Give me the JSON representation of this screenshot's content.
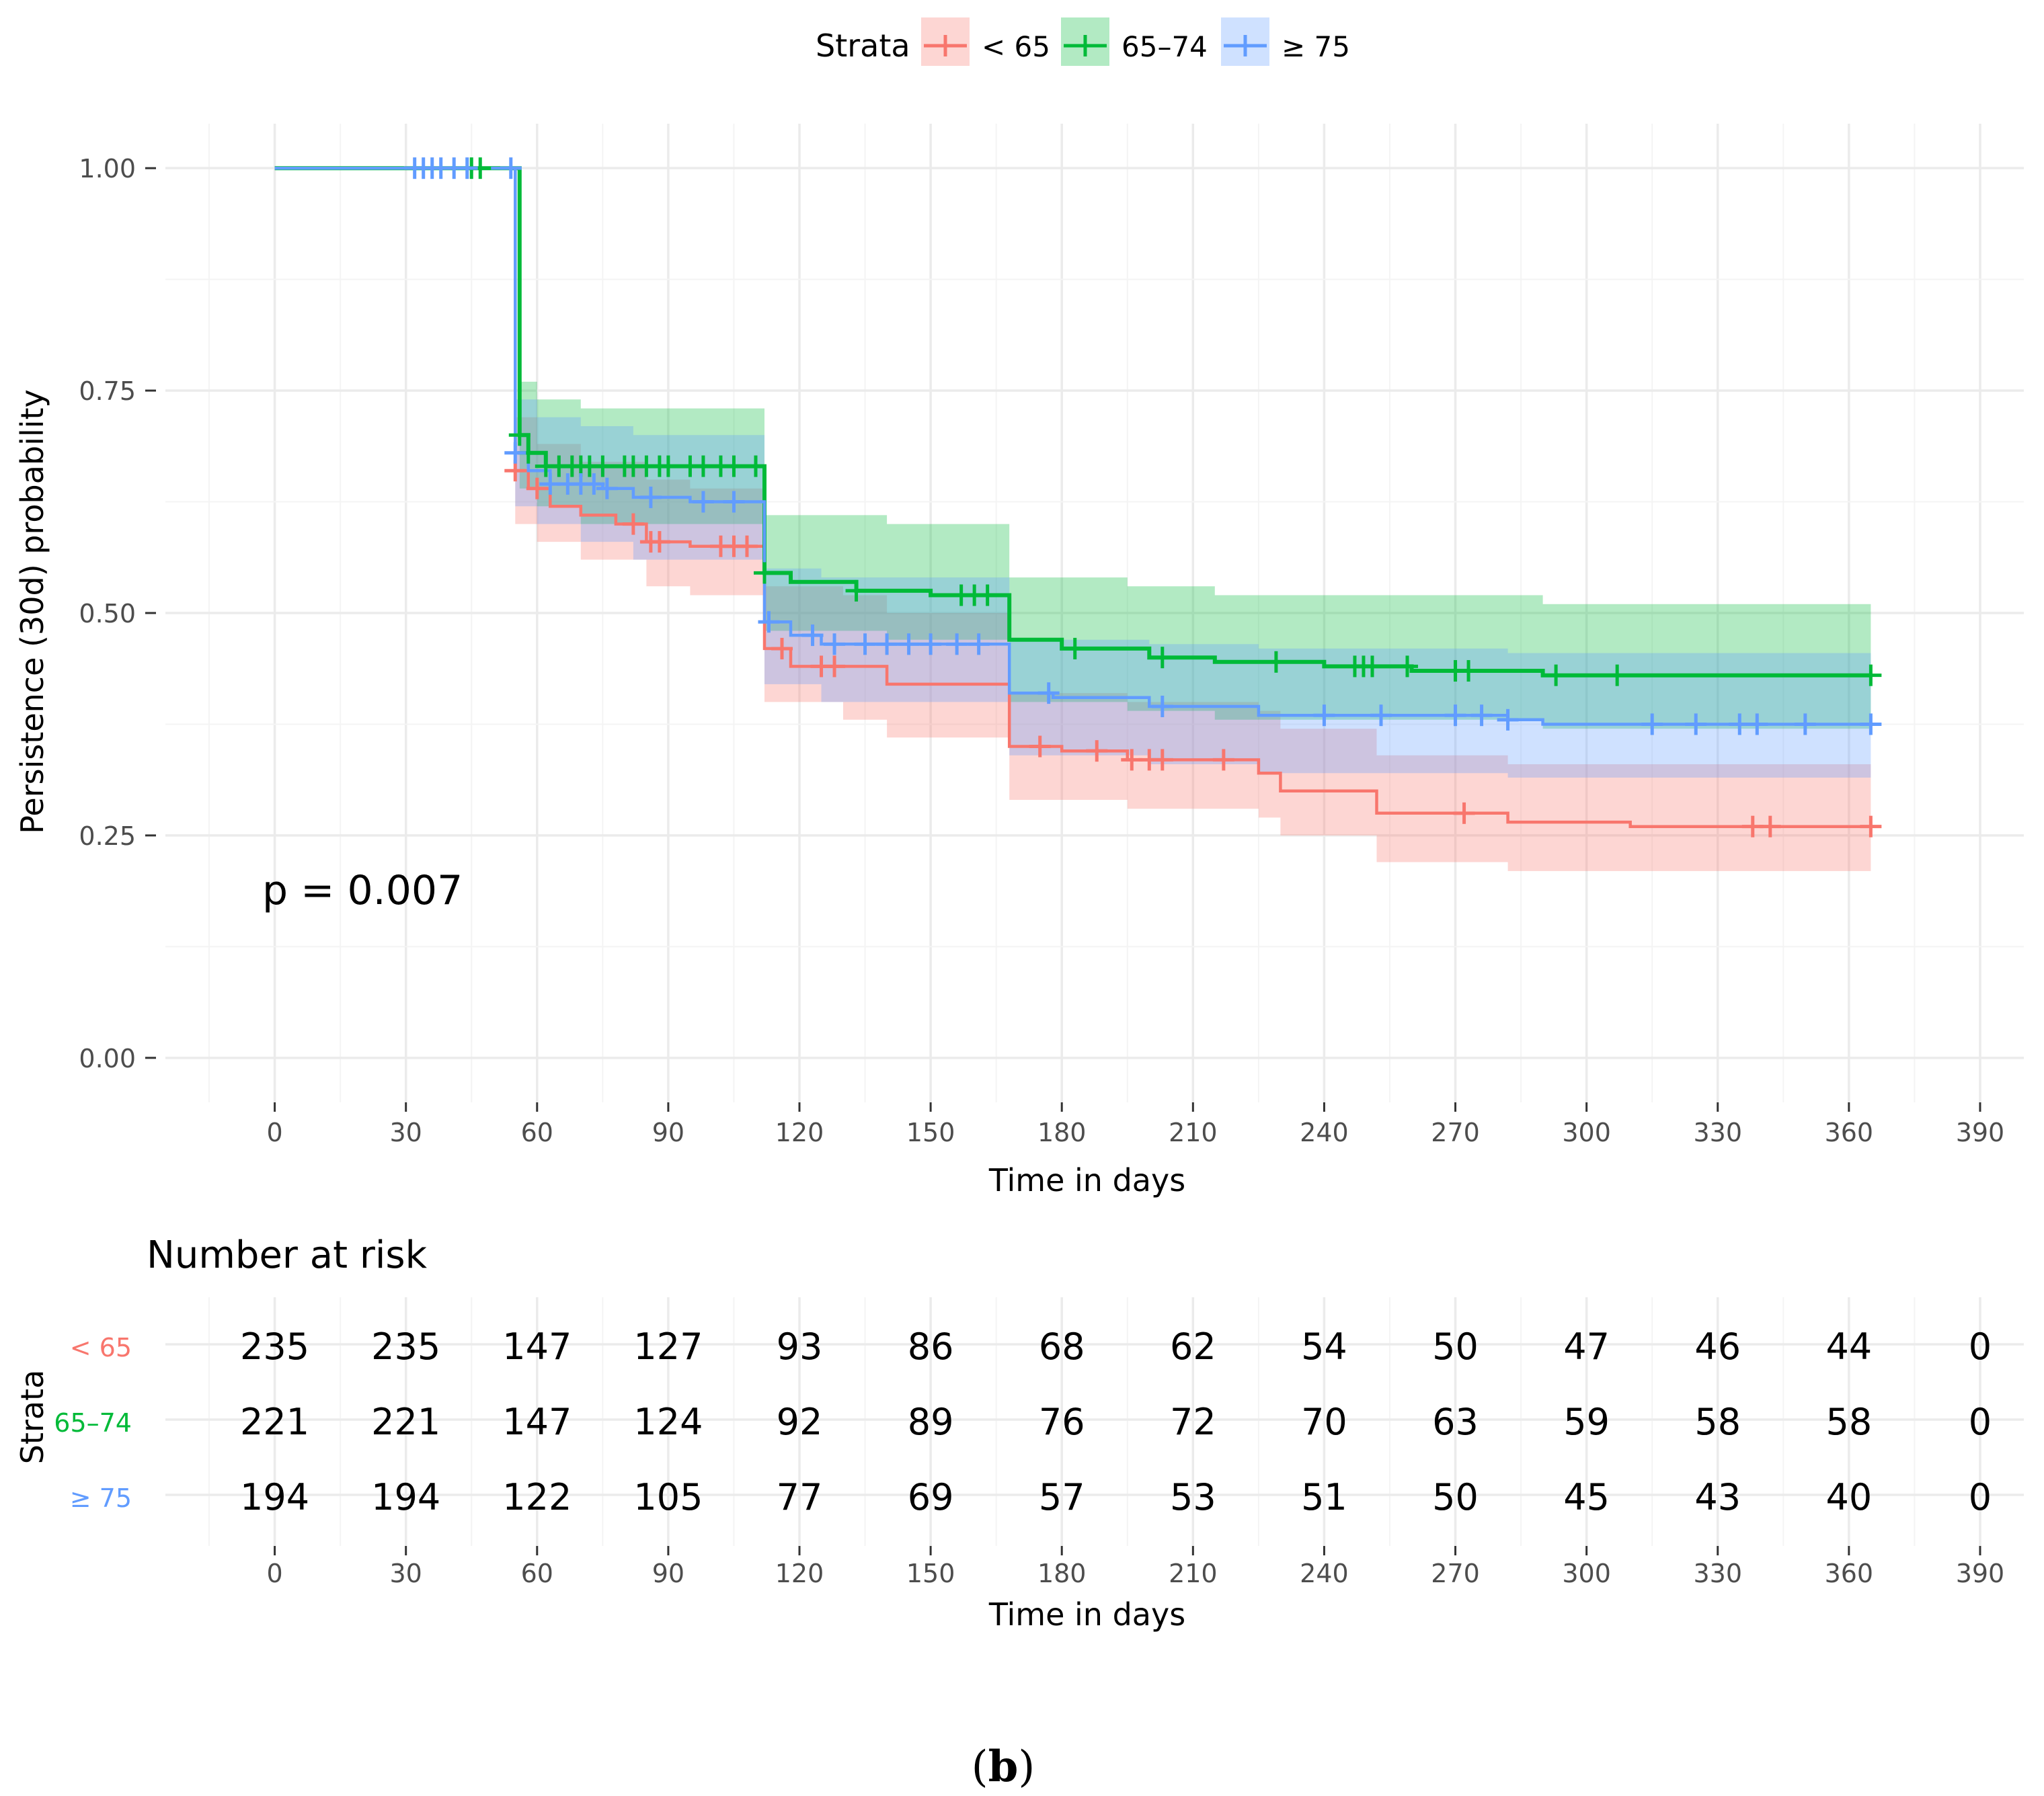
{
  "legend": {
    "title": "Strata",
    "items": [
      {
        "label": "< 65",
        "color": "#F8766D"
      },
      {
        "label": "65–74",
        "color": "#00BA38"
      },
      {
        "label": "≥ 75",
        "color": "#619CFF"
      }
    ]
  },
  "chart_data": {
    "type": "line",
    "subtype": "kaplan-meier survival curve with confidence bands",
    "xlabel": "Time in days",
    "ylabel": "Persistence (30d) probability",
    "xlim": [
      -25,
      400
    ],
    "ylim": [
      -0.05,
      1.05
    ],
    "x_ticks": [
      0,
      30,
      60,
      90,
      120,
      150,
      180,
      210,
      240,
      270,
      300,
      330,
      360,
      390
    ],
    "y_ticks": [
      0.0,
      0.25,
      0.5,
      0.75,
      1.0
    ],
    "y_tick_labels": [
      "0.00",
      "0.25",
      "0.50",
      "0.75",
      "1.00"
    ],
    "grid": true,
    "legend_position": "top",
    "annotation": "p = 0.007",
    "series": [
      {
        "name": "< 65",
        "color": "#F8766D",
        "fill": "#F8766D",
        "steps": [
          [
            0,
            1.0
          ],
          [
            55,
            1.0
          ],
          [
            55,
            0.66
          ],
          [
            58,
            0.64
          ],
          [
            63,
            0.62
          ],
          [
            70,
            0.61
          ],
          [
            78,
            0.6
          ],
          [
            85,
            0.58
          ],
          [
            95,
            0.575
          ],
          [
            112,
            0.575
          ],
          [
            112,
            0.46
          ],
          [
            118,
            0.44
          ],
          [
            135,
            0.44
          ],
          [
            140,
            0.42
          ],
          [
            168,
            0.42
          ],
          [
            168,
            0.35
          ],
          [
            180,
            0.345
          ],
          [
            195,
            0.335
          ],
          [
            210,
            0.335
          ],
          [
            225,
            0.32
          ],
          [
            230,
            0.3
          ],
          [
            252,
            0.3
          ],
          [
            252,
            0.275
          ],
          [
            282,
            0.275
          ],
          [
            282,
            0.265
          ],
          [
            310,
            0.265
          ],
          [
            310,
            0.26
          ],
          [
            365,
            0.26
          ]
        ],
        "ci_upper": [
          [
            55,
            0.72
          ],
          [
            60,
            0.69
          ],
          [
            70,
            0.67
          ],
          [
            85,
            0.65
          ],
          [
            95,
            0.64
          ],
          [
            112,
            0.64
          ],
          [
            112,
            0.53
          ],
          [
            130,
            0.52
          ],
          [
            140,
            0.5
          ],
          [
            168,
            0.5
          ],
          [
            168,
            0.41
          ],
          [
            195,
            0.4
          ],
          [
            225,
            0.39
          ],
          [
            230,
            0.37
          ],
          [
            252,
            0.37
          ],
          [
            252,
            0.34
          ],
          [
            282,
            0.34
          ],
          [
            282,
            0.33
          ],
          [
            310,
            0.33
          ],
          [
            365,
            0.31
          ]
        ],
        "ci_lower": [
          [
            55,
            0.6
          ],
          [
            60,
            0.58
          ],
          [
            70,
            0.56
          ],
          [
            85,
            0.53
          ],
          [
            95,
            0.52
          ],
          [
            112,
            0.51
          ],
          [
            112,
            0.4
          ],
          [
            130,
            0.38
          ],
          [
            140,
            0.36
          ],
          [
            168,
            0.36
          ],
          [
            168,
            0.29
          ],
          [
            195,
            0.28
          ],
          [
            225,
            0.27
          ],
          [
            230,
            0.25
          ],
          [
            252,
            0.25
          ],
          [
            252,
            0.22
          ],
          [
            282,
            0.22
          ],
          [
            282,
            0.21
          ],
          [
            310,
            0.21
          ],
          [
            365,
            0.205
          ]
        ],
        "censor_x": [
          55,
          60,
          82,
          86,
          88,
          102,
          105,
          108,
          116,
          125,
          128,
          175,
          188,
          196,
          200,
          203,
          217,
          272,
          338,
          342,
          365
        ],
        "at_risk": [
          235,
          235,
          147,
          127,
          93,
          86,
          68,
          62,
          54,
          50,
          47,
          46,
          44,
          0
        ]
      },
      {
        "name": "65–74",
        "color": "#00BA38",
        "fill": "#00BA38",
        "steps": [
          [
            0,
            1.0
          ],
          [
            56,
            1.0
          ],
          [
            56,
            0.7
          ],
          [
            58,
            0.68
          ],
          [
            62,
            0.665
          ],
          [
            112,
            0.665
          ],
          [
            112,
            0.545
          ],
          [
            118,
            0.535
          ],
          [
            133,
            0.525
          ],
          [
            150,
            0.52
          ],
          [
            168,
            0.52
          ],
          [
            168,
            0.47
          ],
          [
            180,
            0.46
          ],
          [
            200,
            0.45
          ],
          [
            215,
            0.445
          ],
          [
            240,
            0.44
          ],
          [
            260,
            0.435
          ],
          [
            290,
            0.43
          ],
          [
            365,
            0.43
          ]
        ],
        "ci_upper": [
          [
            56,
            0.76
          ],
          [
            60,
            0.74
          ],
          [
            70,
            0.73
          ],
          [
            112,
            0.73
          ],
          [
            112,
            0.61
          ],
          [
            140,
            0.6
          ],
          [
            168,
            0.6
          ],
          [
            168,
            0.54
          ],
          [
            195,
            0.53
          ],
          [
            215,
            0.52
          ],
          [
            240,
            0.52
          ],
          [
            290,
            0.51
          ],
          [
            365,
            0.51
          ]
        ],
        "ci_lower": [
          [
            56,
            0.64
          ],
          [
            60,
            0.62
          ],
          [
            70,
            0.6
          ],
          [
            112,
            0.6
          ],
          [
            112,
            0.48
          ],
          [
            140,
            0.47
          ],
          [
            168,
            0.45
          ],
          [
            168,
            0.4
          ],
          [
            195,
            0.39
          ],
          [
            215,
            0.38
          ],
          [
            240,
            0.38
          ],
          [
            290,
            0.37
          ],
          [
            365,
            0.36
          ]
        ],
        "censor_x": [
          45,
          47,
          56,
          58,
          62,
          65,
          68,
          70,
          72,
          75,
          80,
          82,
          85,
          88,
          90,
          95,
          98,
          102,
          105,
          110,
          112,
          133,
          157,
          160,
          163,
          183,
          203,
          229,
          247,
          249,
          251,
          259,
          270,
          273,
          293,
          307,
          365
        ],
        "at_risk": [
          221,
          221,
          147,
          124,
          92,
          89,
          76,
          72,
          70,
          63,
          59,
          58,
          58,
          0
        ]
      },
      {
        "name": "≥ 75",
        "color": "#619CFF",
        "fill": "#619CFF",
        "steps": [
          [
            0,
            1.0
          ],
          [
            55,
            1.0
          ],
          [
            55,
            0.68
          ],
          [
            58,
            0.66
          ],
          [
            63,
            0.645
          ],
          [
            75,
            0.64
          ],
          [
            82,
            0.63
          ],
          [
            95,
            0.625
          ],
          [
            112,
            0.625
          ],
          [
            112,
            0.49
          ],
          [
            118,
            0.475
          ],
          [
            125,
            0.465
          ],
          [
            168,
            0.465
          ],
          [
            168,
            0.41
          ],
          [
            178,
            0.405
          ],
          [
            200,
            0.395
          ],
          [
            225,
            0.385
          ],
          [
            240,
            0.385
          ],
          [
            282,
            0.38
          ],
          [
            290,
            0.375
          ],
          [
            365,
            0.375
          ]
        ],
        "ci_upper": [
          [
            55,
            0.74
          ],
          [
            60,
            0.72
          ],
          [
            70,
            0.71
          ],
          [
            82,
            0.7
          ],
          [
            112,
            0.69
          ],
          [
            112,
            0.55
          ],
          [
            125,
            0.54
          ],
          [
            168,
            0.53
          ],
          [
            168,
            0.47
          ],
          [
            200,
            0.465
          ],
          [
            225,
            0.46
          ],
          [
            282,
            0.455
          ],
          [
            365,
            0.45
          ]
        ],
        "ci_lower": [
          [
            55,
            0.62
          ],
          [
            60,
            0.6
          ],
          [
            70,
            0.58
          ],
          [
            82,
            0.56
          ],
          [
            112,
            0.555
          ],
          [
            112,
            0.42
          ],
          [
            125,
            0.4
          ],
          [
            168,
            0.39
          ],
          [
            168,
            0.34
          ],
          [
            200,
            0.33
          ],
          [
            225,
            0.32
          ],
          [
            282,
            0.315
          ],
          [
            365,
            0.3
          ]
        ],
        "censor_x": [
          32,
          34,
          36,
          38,
          41,
          44,
          54,
          55,
          63,
          67,
          70,
          73,
          76,
          86,
          98,
          105,
          113,
          123,
          128,
          135,
          140,
          145,
          150,
          156,
          161,
          177,
          203,
          240,
          253,
          270,
          276,
          282,
          315,
          325,
          335,
          339,
          350,
          365
        ],
        "at_risk": [
          194,
          194,
          122,
          105,
          77,
          69,
          57,
          53,
          51,
          50,
          45,
          43,
          40,
          0
        ]
      }
    ]
  },
  "risk_table": {
    "title": "Number at risk",
    "ylabel": "Strata",
    "xlabel": "Time in days",
    "x_ticks": [
      0,
      30,
      60,
      90,
      120,
      150,
      180,
      210,
      240,
      270,
      300,
      330,
      360,
      390
    ]
  },
  "caption": {
    "open": "(",
    "letter": "b",
    "close": ")"
  }
}
